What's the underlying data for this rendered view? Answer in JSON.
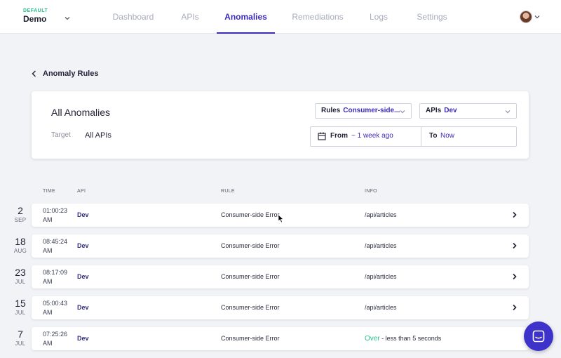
{
  "env": {
    "tag": "DEFAULT",
    "name": "Demo"
  },
  "nav": {
    "tabs": [
      {
        "label": "Dashboard"
      },
      {
        "label": "APIs"
      },
      {
        "label": "Anomalies"
      },
      {
        "label": "Remediations"
      },
      {
        "label": "Logs"
      },
      {
        "label": "Settings"
      }
    ],
    "active": "Anomalies"
  },
  "breadcrumb": {
    "label": "Anomaly Rules"
  },
  "filters": {
    "title": "All Anomalies",
    "target_label": "Target",
    "target_value": "All APIs",
    "rules_label": "Rules",
    "rules_value": "Consumer-side...",
    "apis_label": "APIs",
    "apis_value": "Dev",
    "from_label": "From",
    "from_value": "~ 1 week ago",
    "to_label": "To",
    "to_value": "Now"
  },
  "table": {
    "headers": {
      "time": "TIME",
      "api": "API",
      "rule": "RULE",
      "info": "INFO"
    },
    "rows": [
      {
        "day": "2",
        "month": "SEP",
        "time": "01:00:23",
        "ampm": "AM",
        "api": "Dev",
        "rule": "Consumer-side Error",
        "info": "/api/articles"
      },
      {
        "day": "18",
        "month": "AUG",
        "time": "08:45:24",
        "ampm": "AM",
        "api": "Dev",
        "rule": "Consumer-side Error",
        "info": "/api/articles"
      },
      {
        "day": "23",
        "month": "JUL",
        "time": "08:17:09",
        "ampm": "AM",
        "api": "Dev",
        "rule": "Consumer-side Error",
        "info": "/api/articles"
      },
      {
        "day": "15",
        "month": "JUL",
        "time": "05:00:43",
        "ampm": "AM",
        "api": "Dev",
        "rule": "Consumer-side Error",
        "info": "/api/articles"
      },
      {
        "day": "7",
        "month": "JUL",
        "time": "07:25:26",
        "ampm": "AM",
        "api": "Dev",
        "rule": "Consumer-side Error",
        "info_highlight": "Over",
        "info_rest": " - less than 5 seconds"
      }
    ]
  },
  "colors": {
    "accent": "#3c2bb8",
    "success": "#27c08a",
    "chat": "#3d32c9"
  },
  "icons": [
    "chevron-down-icon",
    "chevron-left-icon",
    "calendar-icon",
    "chevron-right-icon",
    "chat-icon",
    "mouse-cursor-icon"
  ]
}
